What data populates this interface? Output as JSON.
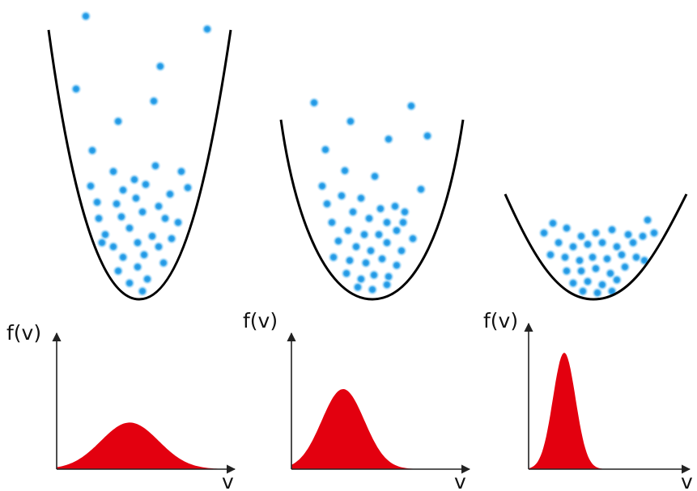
{
  "colors": {
    "particle": "#2fa4ea",
    "particle_glow": "#bfe4fb",
    "well_stroke": "#000000",
    "distribution_fill": "#e3000f",
    "axis": "#222222"
  },
  "panels": [
    {
      "id": "hot",
      "y_axis_label": "f(v)",
      "x_axis_label": "v",
      "distribution": {
        "peak_v": 0.43,
        "width": 0.17,
        "peak_height": 0.32
      }
    },
    {
      "id": "warm",
      "y_axis_label": "f(v)",
      "x_axis_label": "v",
      "distribution": {
        "peak_v": 0.29,
        "width": 0.12,
        "peak_height": 0.55
      }
    },
    {
      "id": "cold",
      "y_axis_label": "f(v)",
      "x_axis_label": "v",
      "distribution": {
        "peak_v": 0.22,
        "width": 0.07,
        "peak_height": 0.8
      }
    }
  ]
}
